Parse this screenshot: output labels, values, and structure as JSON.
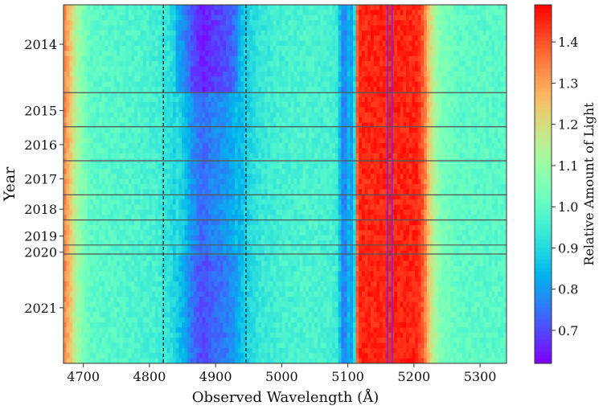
{
  "chart_data": {
    "type": "heatmap",
    "title": "",
    "xlabel": "Observed Wavelength (Å)",
    "ylabel": "Year",
    "x_range": [
      4670,
      5340
    ],
    "x_ticks": [
      4700,
      4800,
      4900,
      5000,
      5100,
      5200,
      5300
    ],
    "y_tick_labels": [
      {
        "label": "2014",
        "row": 0.11
      },
      {
        "label": "2015",
        "row": 0.295
      },
      {
        "label": "2016",
        "row": 0.39
      },
      {
        "label": "2017",
        "row": 0.485
      },
      {
        "label": "2018",
        "row": 0.57
      },
      {
        "label": "2019",
        "row": 0.645
      },
      {
        "label": "2020",
        "row": 0.69
      },
      {
        "label": "2021",
        "row": 0.845
      }
    ],
    "year_separators": [
      0.245,
      0.34,
      0.435,
      0.53,
      0.6,
      0.67,
      0.695
    ],
    "reference_lines_wavelength": [
      4821,
      4946
    ],
    "colorbar": {
      "label": "Relative Amount of Light",
      "colormap": "rainbow",
      "range": [
        0.62,
        1.49
      ],
      "ticks": [
        0.7,
        0.8,
        0.9,
        1.0,
        1.1,
        1.2,
        1.3,
        1.4
      ]
    },
    "profile": [
      {
        "w": 4670,
        "v": 1.35
      },
      {
        "w": 4680,
        "v": 1.25
      },
      {
        "w": 4692,
        "v": 1.1
      },
      {
        "w": 4710,
        "v": 1.0
      },
      {
        "w": 4760,
        "v": 0.98
      },
      {
        "w": 4810,
        "v": 0.96
      },
      {
        "w": 4830,
        "v": 0.92
      },
      {
        "w": 4850,
        "v": 0.84
      },
      {
        "w": 4865,
        "v": 0.75
      },
      {
        "w": 4880,
        "v": 0.7
      },
      {
        "w": 4895,
        "v": 0.73
      },
      {
        "w": 4910,
        "v": 0.75
      },
      {
        "w": 4925,
        "v": 0.78
      },
      {
        "w": 4945,
        "v": 0.88
      },
      {
        "w": 4965,
        "v": 0.93
      },
      {
        "w": 5000,
        "v": 0.96
      },
      {
        "w": 5040,
        "v": 0.97
      },
      {
        "w": 5075,
        "v": 0.96
      },
      {
        "w": 5085,
        "v": 0.94
      },
      {
        "w": 5090,
        "v": 0.8
      },
      {
        "w": 5095,
        "v": 0.75
      },
      {
        "w": 5100,
        "v": 0.85
      },
      {
        "w": 5105,
        "v": 0.8
      },
      {
        "w": 5110,
        "v": 0.9
      },
      {
        "w": 5115,
        "v": 1.45
      },
      {
        "w": 5205,
        "v": 1.45
      },
      {
        "w": 5215,
        "v": 1.38
      },
      {
        "w": 5225,
        "v": 1.2
      },
      {
        "w": 5240,
        "v": 1.05
      },
      {
        "w": 5270,
        "v": 1.0
      },
      {
        "w": 5340,
        "v": 0.99
      }
    ],
    "absorption_lines": [
      5160,
      5167
    ]
  }
}
